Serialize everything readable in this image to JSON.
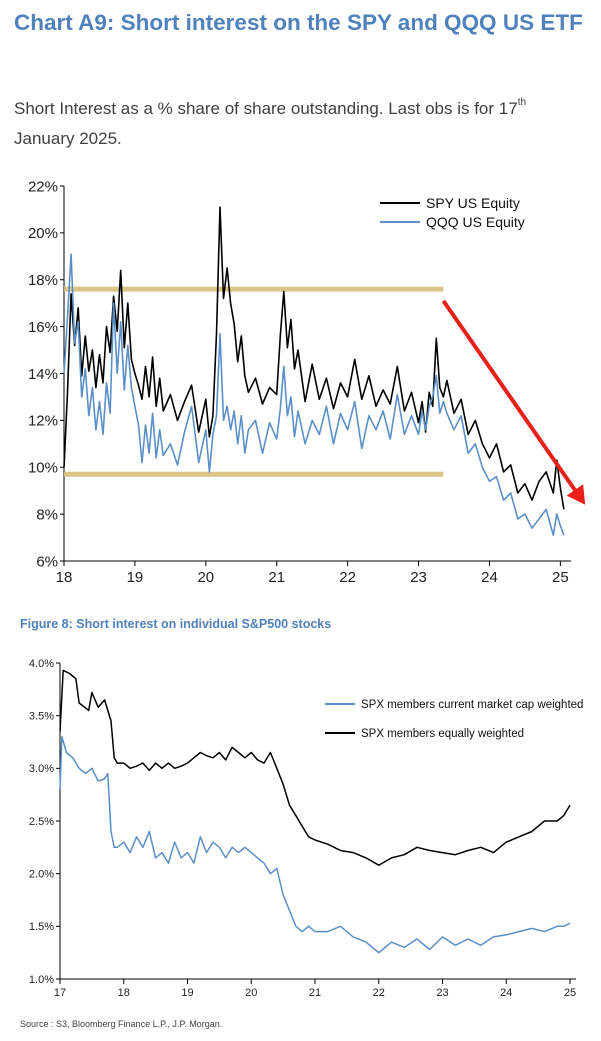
{
  "heading": {
    "title": "Chart A9: Short interest on the SPY and QQQ US ETF",
    "subtitle_pre": "Short Interest as a % share of share outstanding. Last obs is for 17",
    "subtitle_sup": "th",
    "subtitle_post": " January 2025."
  },
  "figure2_title": "Figure 8: Short interest on individual S&P500 stocks",
  "source": "Source : S3, Bloomberg Finance L.P., J.P. Morgan.",
  "colors": {
    "black_series": "#000000",
    "blue_series": "#5b8fc7",
    "band": "#d6bf7a",
    "arrow": "#e8201a",
    "axis": "#000000"
  },
  "chart_data": [
    {
      "type": "line",
      "x_ticks": [
        "18",
        "19",
        "20",
        "21",
        "22",
        "23",
        "24",
        "25"
      ],
      "y_ticks": [
        "6%",
        "8%",
        "10%",
        "12%",
        "14%",
        "16%",
        "18%",
        "20%",
        "22%"
      ],
      "xlim": [
        2018.0,
        2025.15
      ],
      "ylim": [
        6,
        22
      ],
      "legend_position": "top-right",
      "annotations": {
        "horizontal_bands": [
          17.6,
          9.7
        ],
        "band_extent_x": [
          2018.0,
          2023.35
        ],
        "trend_arrow": {
          "from": [
            2023.35,
            17.1
          ],
          "to": [
            2025.35,
            8.4
          ]
        }
      },
      "series": [
        {
          "name": "SPY US Equity",
          "x": [
            2018.0,
            2018.05,
            2018.1,
            2018.15,
            2018.2,
            2018.25,
            2018.3,
            2018.35,
            2018.4,
            2018.45,
            2018.5,
            2018.55,
            2018.6,
            2018.65,
            2018.7,
            2018.75,
            2018.8,
            2018.85,
            2018.9,
            2018.95,
            2019.0,
            2019.05,
            2019.1,
            2019.15,
            2019.2,
            2019.25,
            2019.3,
            2019.35,
            2019.4,
            2019.5,
            2019.6,
            2019.7,
            2019.8,
            2019.9,
            2020.0,
            2020.05,
            2020.1,
            2020.15,
            2020.2,
            2020.25,
            2020.3,
            2020.35,
            2020.4,
            2020.45,
            2020.5,
            2020.55,
            2020.6,
            2020.7,
            2020.8,
            2020.9,
            2021.0,
            2021.05,
            2021.1,
            2021.15,
            2021.2,
            2021.25,
            2021.3,
            2021.4,
            2021.5,
            2021.6,
            2021.7,
            2021.8,
            2021.9,
            2022.0,
            2022.1,
            2022.2,
            2022.3,
            2022.4,
            2022.5,
            2022.6,
            2022.7,
            2022.8,
            2022.9,
            2023.0,
            2023.05,
            2023.1,
            2023.15,
            2023.2,
            2023.25,
            2023.3,
            2023.35,
            2023.4,
            2023.5,
            2023.6,
            2023.7,
            2023.8,
            2023.9,
            2024.0,
            2024.1,
            2024.2,
            2024.3,
            2024.4,
            2024.5,
            2024.6,
            2024.7,
            2024.8,
            2024.9,
            2024.95,
            2025.0,
            2025.05
          ],
          "values": [
            10.0,
            13.2,
            17.4,
            15.2,
            16.8,
            13.9,
            15.6,
            14.1,
            15.0,
            13.4,
            14.8,
            13.6,
            16.0,
            14.9,
            17.3,
            15.8,
            18.4,
            15.1,
            17.0,
            14.6,
            14.0,
            13.5,
            12.9,
            14.3,
            13.0,
            14.7,
            12.6,
            13.8,
            12.4,
            13.1,
            12.0,
            12.8,
            13.5,
            11.5,
            12.9,
            11.3,
            12.2,
            15.7,
            21.1,
            17.2,
            18.5,
            17.0,
            16.1,
            14.5,
            15.6,
            13.9,
            13.2,
            13.8,
            12.7,
            13.4,
            13.1,
            15.6,
            17.5,
            15.1,
            16.3,
            14.2,
            15.0,
            12.8,
            14.4,
            12.9,
            13.8,
            12.5,
            13.6,
            13.0,
            14.6,
            12.9,
            13.9,
            12.6,
            13.3,
            12.7,
            14.3,
            12.4,
            13.2,
            11.9,
            12.8,
            11.5,
            13.2,
            12.6,
            15.5,
            13.4,
            13.0,
            13.7,
            12.3,
            12.9,
            11.4,
            12.0,
            11.0,
            10.4,
            11.0,
            9.8,
            10.1,
            8.9,
            9.3,
            8.6,
            9.4,
            9.8,
            8.9,
            10.3,
            9.1,
            8.2
          ]
        },
        {
          "name": "QQQ US Equity",
          "x": [
            2018.0,
            2018.05,
            2018.1,
            2018.15,
            2018.2,
            2018.25,
            2018.3,
            2018.35,
            2018.4,
            2018.45,
            2018.5,
            2018.55,
            2018.6,
            2018.65,
            2018.7,
            2018.75,
            2018.8,
            2018.85,
            2018.9,
            2018.95,
            2019.0,
            2019.05,
            2019.1,
            2019.15,
            2019.2,
            2019.25,
            2019.3,
            2019.35,
            2019.4,
            2019.5,
            2019.6,
            2019.7,
            2019.8,
            2019.9,
            2020.0,
            2020.05,
            2020.1,
            2020.15,
            2020.2,
            2020.25,
            2020.3,
            2020.35,
            2020.4,
            2020.45,
            2020.5,
            2020.55,
            2020.6,
            2020.7,
            2020.8,
            2020.9,
            2021.0,
            2021.05,
            2021.1,
            2021.15,
            2021.2,
            2021.25,
            2021.3,
            2021.4,
            2021.5,
            2021.6,
            2021.7,
            2021.8,
            2021.9,
            2022.0,
            2022.1,
            2022.2,
            2022.3,
            2022.4,
            2022.5,
            2022.6,
            2022.7,
            2022.8,
            2022.9,
            2023.0,
            2023.05,
            2023.1,
            2023.15,
            2023.2,
            2023.25,
            2023.3,
            2023.35,
            2023.4,
            2023.5,
            2023.6,
            2023.7,
            2023.8,
            2023.9,
            2024.0,
            2024.1,
            2024.2,
            2024.3,
            2024.4,
            2024.5,
            2024.6,
            2024.7,
            2024.8,
            2024.9,
            2024.95,
            2025.0,
            2025.05
          ],
          "values": [
            14.0,
            16.4,
            19.1,
            15.3,
            16.2,
            13.0,
            14.2,
            12.2,
            13.4,
            11.6,
            12.8,
            11.4,
            13.6,
            12.3,
            17.0,
            14.0,
            16.2,
            13.3,
            15.2,
            13.4,
            12.6,
            11.8,
            10.2,
            11.8,
            10.6,
            12.3,
            10.4,
            11.6,
            10.5,
            11.0,
            10.1,
            11.5,
            12.6,
            10.2,
            11.6,
            9.8,
            11.4,
            12.2,
            15.7,
            12.0,
            12.6,
            11.6,
            12.4,
            11.0,
            12.2,
            10.6,
            11.6,
            12.0,
            10.6,
            11.9,
            11.2,
            12.5,
            14.3,
            12.2,
            13.0,
            11.3,
            12.4,
            11.0,
            12.0,
            11.4,
            12.6,
            11.0,
            12.3,
            11.6,
            12.8,
            10.8,
            12.2,
            11.6,
            12.4,
            11.2,
            13.1,
            11.4,
            12.2,
            11.4,
            12.4,
            11.6,
            12.6,
            13.0,
            13.9,
            12.3,
            12.8,
            12.3,
            11.6,
            12.2,
            10.6,
            11.0,
            10.0,
            9.4,
            9.6,
            8.6,
            8.9,
            7.8,
            8.0,
            7.4,
            7.8,
            8.2,
            7.1,
            8.0,
            7.5,
            7.1
          ]
        }
      ]
    },
    {
      "type": "line",
      "x_ticks": [
        "17",
        "18",
        "19",
        "20",
        "21",
        "22",
        "23",
        "24",
        "25"
      ],
      "y_ticks": [
        "1.0%",
        "1.5%",
        "2.0%",
        "2.5%",
        "3.0%",
        "3.5%",
        "4.0%"
      ],
      "xlim": [
        2017.0,
        2025.0
      ],
      "ylim": [
        1.0,
        4.0
      ],
      "legend_position": "top-right",
      "series": [
        {
          "name": "SPX members current market cap weighted",
          "x": [
            2017.0,
            2017.03,
            2017.1,
            2017.2,
            2017.3,
            2017.4,
            2017.5,
            2017.6,
            2017.7,
            2017.75,
            2017.8,
            2017.85,
            2017.9,
            2018.0,
            2018.1,
            2018.2,
            2018.3,
            2018.4,
            2018.5,
            2018.6,
            2018.7,
            2018.8,
            2018.9,
            2019.0,
            2019.1,
            2019.2,
            2019.3,
            2019.4,
            2019.5,
            2019.6,
            2019.7,
            2019.8,
            2019.9,
            2020.0,
            2020.1,
            2020.2,
            2020.3,
            2020.4,
            2020.5,
            2020.6,
            2020.7,
            2020.8,
            2020.9,
            2021.0,
            2021.2,
            2021.4,
            2021.6,
            2021.8,
            2022.0,
            2022.2,
            2022.4,
            2022.6,
            2022.8,
            2023.0,
            2023.2,
            2023.4,
            2023.6,
            2023.8,
            2024.0,
            2024.2,
            2024.4,
            2024.6,
            2024.8,
            2024.9,
            2025.0
          ],
          "values": [
            2.8,
            3.3,
            3.15,
            3.1,
            3.0,
            2.95,
            3.0,
            2.88,
            2.9,
            2.95,
            2.4,
            2.25,
            2.25,
            2.3,
            2.2,
            2.35,
            2.25,
            2.4,
            2.15,
            2.2,
            2.1,
            2.3,
            2.15,
            2.2,
            2.1,
            2.35,
            2.2,
            2.3,
            2.25,
            2.15,
            2.25,
            2.2,
            2.25,
            2.2,
            2.15,
            2.1,
            2.0,
            2.05,
            1.8,
            1.65,
            1.5,
            1.45,
            1.5,
            1.45,
            1.45,
            1.5,
            1.4,
            1.35,
            1.25,
            1.35,
            1.3,
            1.38,
            1.28,
            1.4,
            1.32,
            1.38,
            1.32,
            1.4,
            1.42,
            1.45,
            1.48,
            1.45,
            1.5,
            1.5,
            1.53
          ]
        },
        {
          "name": "SPX members equally weighted",
          "x": [
            2017.0,
            2017.05,
            2017.15,
            2017.25,
            2017.3,
            2017.45,
            2017.5,
            2017.6,
            2017.7,
            2017.8,
            2017.85,
            2017.9,
            2018.0,
            2018.1,
            2018.2,
            2018.3,
            2018.4,
            2018.5,
            2018.6,
            2018.7,
            2018.8,
            2018.9,
            2019.0,
            2019.1,
            2019.2,
            2019.3,
            2019.4,
            2019.5,
            2019.6,
            2019.7,
            2019.8,
            2019.9,
            2020.0,
            2020.1,
            2020.2,
            2020.3,
            2020.4,
            2020.5,
            2020.6,
            2020.7,
            2020.8,
            2020.9,
            2021.0,
            2021.2,
            2021.4,
            2021.6,
            2021.8,
            2022.0,
            2022.2,
            2022.4,
            2022.6,
            2022.8,
            2023.0,
            2023.2,
            2023.4,
            2023.6,
            2023.8,
            2024.0,
            2024.2,
            2024.4,
            2024.6,
            2024.8,
            2024.9,
            2024.95,
            2025.0
          ],
          "values": [
            3.35,
            3.93,
            3.9,
            3.85,
            3.62,
            3.55,
            3.72,
            3.58,
            3.65,
            3.45,
            3.1,
            3.05,
            3.05,
            3.0,
            3.02,
            3.05,
            2.98,
            3.05,
            3.0,
            3.05,
            3.0,
            3.02,
            3.05,
            3.1,
            3.15,
            3.12,
            3.1,
            3.15,
            3.08,
            3.2,
            3.15,
            3.1,
            3.15,
            3.08,
            3.05,
            3.15,
            3.0,
            2.85,
            2.65,
            2.55,
            2.45,
            2.35,
            2.32,
            2.28,
            2.22,
            2.2,
            2.15,
            2.08,
            2.15,
            2.18,
            2.25,
            2.22,
            2.2,
            2.18,
            2.22,
            2.25,
            2.2,
            2.3,
            2.35,
            2.4,
            2.5,
            2.5,
            2.55,
            2.6,
            2.65
          ]
        }
      ]
    }
  ]
}
